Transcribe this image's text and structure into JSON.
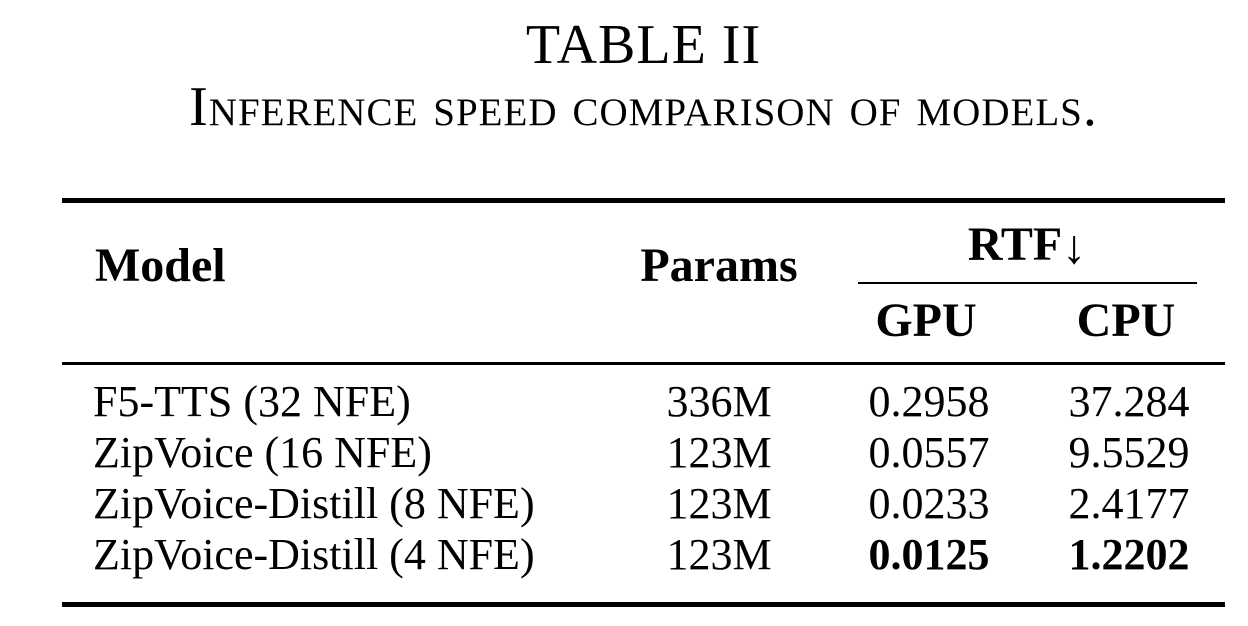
{
  "title": "TABLE II",
  "subtitle": "Inference speed comparison of models.",
  "colors": {
    "text": "#000000",
    "background": "#ffffff",
    "rule": "#000000"
  },
  "table": {
    "columns": {
      "model": "Model",
      "params": "Params",
      "rtf_group": "RTF",
      "rtf_arrow": "↓",
      "gpu": "GPU",
      "cpu": "CPU"
    },
    "rows": [
      {
        "model": "F5-TTS (32 NFE)",
        "params": "336M",
        "gpu": "0.2958",
        "cpu": "37.284",
        "bold": false
      },
      {
        "model": "ZipVoice (16 NFE)",
        "params": "123M",
        "gpu": "0.0557",
        "cpu": "9.5529",
        "bold": false
      },
      {
        "model": "ZipVoice-Distill (8 NFE)",
        "params": "123M",
        "gpu": "0.0233",
        "cpu": "2.4177",
        "bold": false
      },
      {
        "model": "ZipVoice-Distill (4 NFE)",
        "params": "123M",
        "gpu": "0.0125",
        "cpu": "1.2202",
        "bold": true
      }
    ]
  }
}
